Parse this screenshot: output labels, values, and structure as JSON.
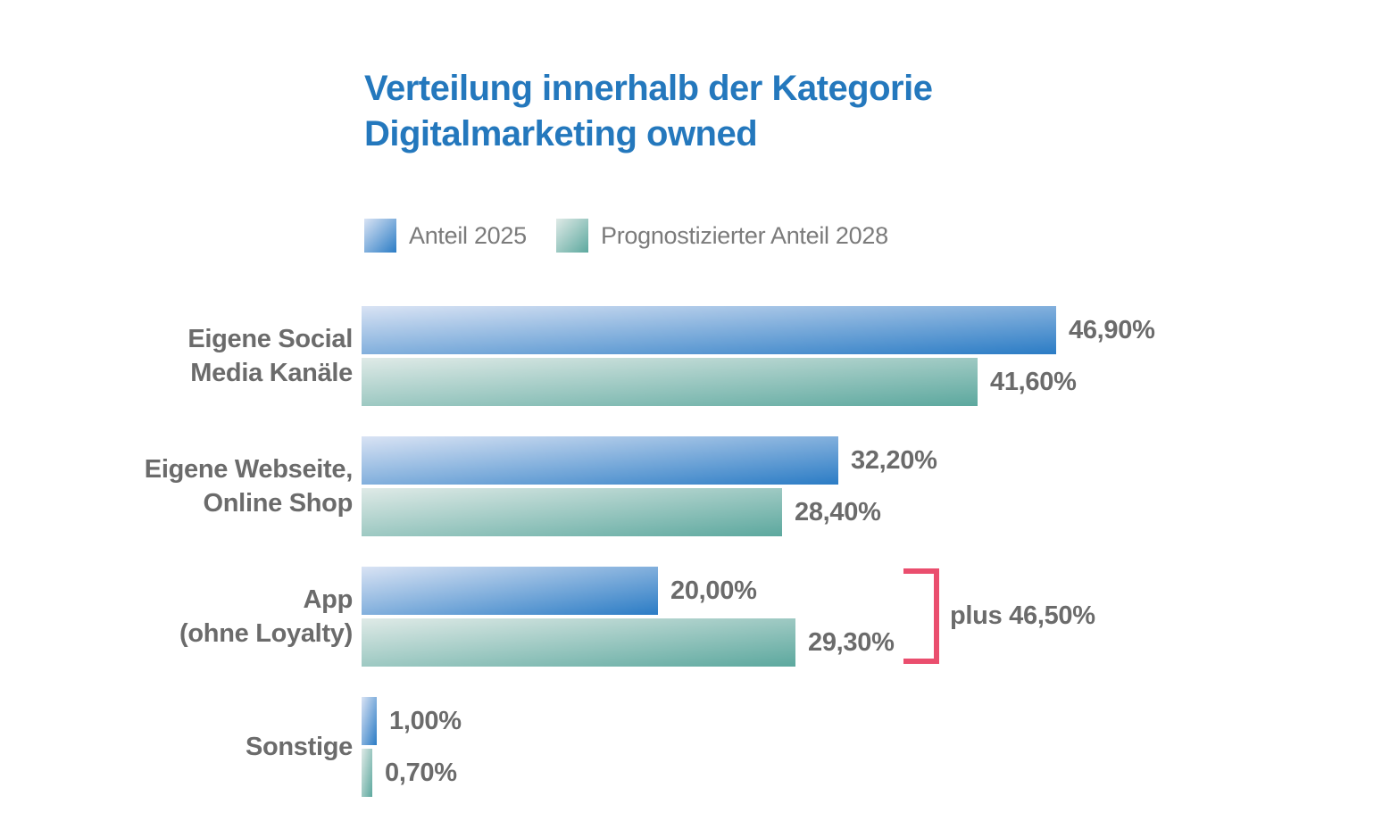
{
  "page": {
    "background": "#ffffff"
  },
  "title": {
    "line1": "Verteilung innerhalb der Kategorie",
    "line2": "Digitalmarketing owned",
    "color": "#2478bd"
  },
  "legend": {
    "items": [
      {
        "label": "Anteil 2025",
        "color_start": "#d9e3f4",
        "color_end": "#2b7cc5"
      },
      {
        "label": "Prognostizierter Anteil 2028",
        "color_start": "#dfeae7",
        "color_end": "#5ca89e"
      }
    ]
  },
  "annotation": {
    "text": "plus 46,50%",
    "bracket_color": "#ea4e6e",
    "text_color": "#6b6b6b"
  },
  "chart_data": {
    "type": "bar",
    "orientation": "horizontal",
    "title": "Verteilung innerhalb der Kategorie Digitalmarketing owned",
    "categories": [
      "Eigene Social Media Kanäle",
      "Eigene Webseite, Online Shop",
      "App (ohne Loyalty)",
      "Sonstige"
    ],
    "category_lines": [
      [
        "Eigene Social",
        "Media Kanäle"
      ],
      [
        "Eigene Webseite,",
        "Online Shop"
      ],
      [
        "App",
        "(ohne Loyalty)"
      ],
      [
        "Sonstige"
      ]
    ],
    "series": [
      {
        "name": "Anteil 2025",
        "values": [
          46.9,
          32.2,
          20.0,
          1.0
        ],
        "labels": [
          "46,90%",
          "32,20%",
          "20,00%",
          "1,00%"
        ],
        "color_start": "#d9e3f4",
        "color_end": "#2b7cc5"
      },
      {
        "name": "Prognostizierter Anteil 2028",
        "values": [
          41.6,
          28.4,
          29.3,
          0.7
        ],
        "labels": [
          "41,60%",
          "28,40%",
          "29,30%",
          "0,70%"
        ],
        "color_start": "#dfeae7",
        "color_end": "#5ca89e"
      }
    ],
    "xlim": [
      0,
      50
    ],
    "grid": false,
    "legend_position": "top",
    "value_suffix": "%",
    "decimal_separator": ",",
    "annotations": [
      {
        "text": "plus 46,50%",
        "target_category": "App (ohne Loyalty)",
        "target_series": "Prognostizierter Anteil 2028"
      }
    ]
  }
}
